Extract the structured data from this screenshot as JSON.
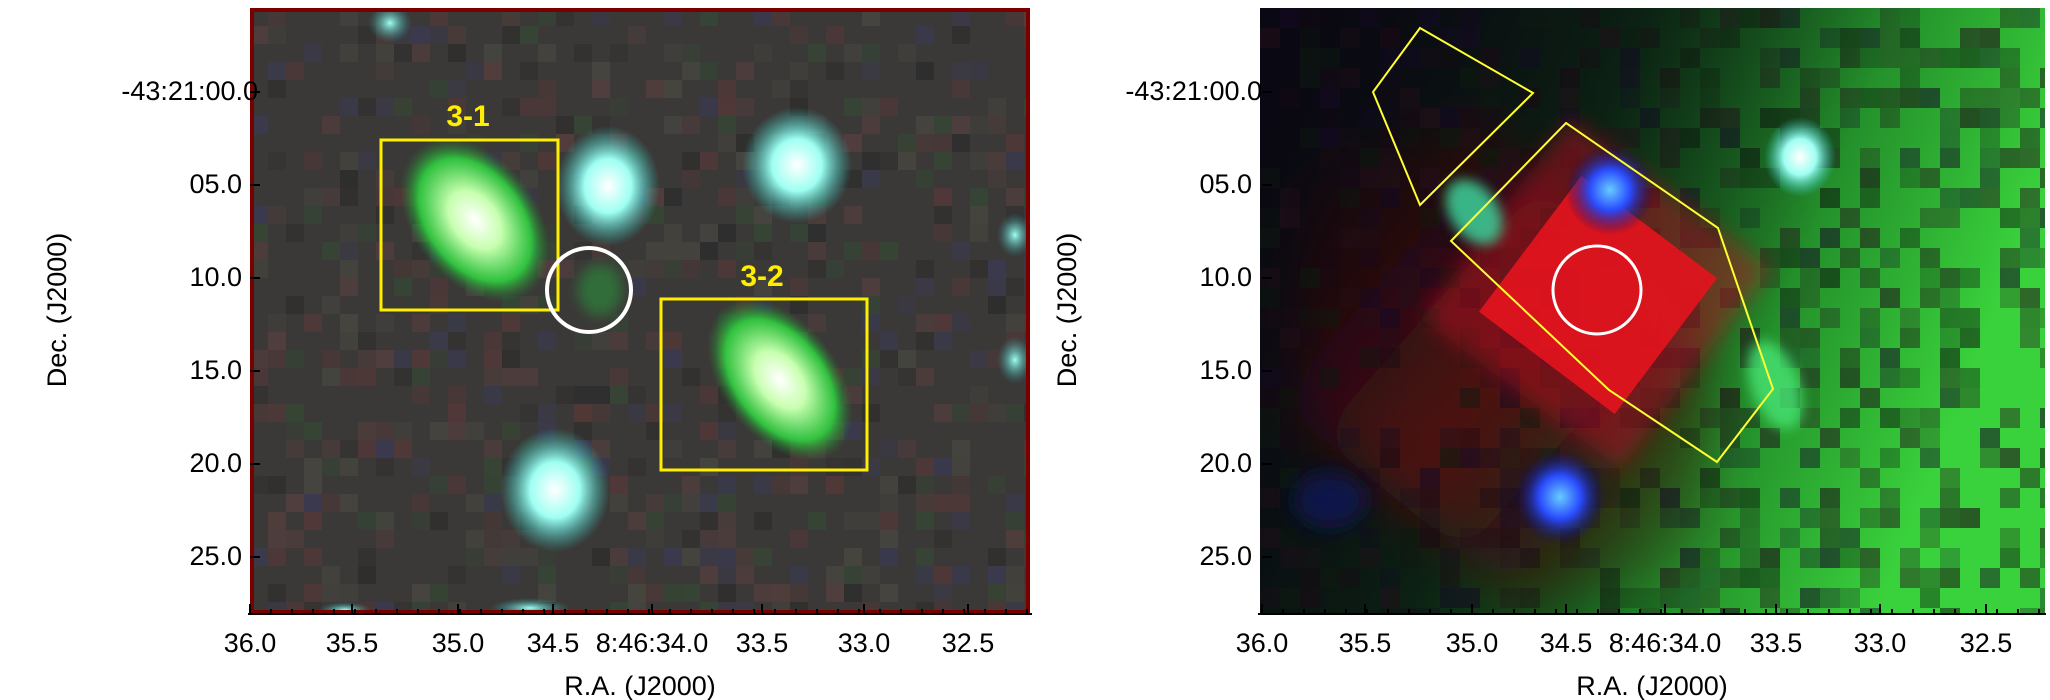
{
  "panels": [
    {
      "id": "left",
      "ylabel": "Dec. (J2000)",
      "xlabel": "R.A. (J2000)",
      "yticks": [
        "-43:21:00.0",
        "05.0",
        "10.0",
        "15.0",
        "20.0",
        "25.0"
      ],
      "xticks": [
        "36.0",
        "35.5",
        "35.0",
        "34.5",
        "8:46:34.0",
        "33.5",
        "33.0",
        "32.5"
      ],
      "labels": [
        "3-1",
        "3-2"
      ],
      "colors": {
        "background": "#3a3a38",
        "frame": "#7a0000",
        "box": "#ffee00",
        "circle": "#ffffff"
      }
    },
    {
      "id": "right",
      "ylabel": "Dec. (J2000)",
      "xlabel": "R.A. (J2000)",
      "yticks": [
        "-43:21:00.0",
        "05.0",
        "10.0",
        "15.0",
        "20.0",
        "25.0"
      ],
      "xticks": [
        "36.0",
        "35.5",
        "35.0",
        "34.5",
        "8:46:34.0",
        "33.5",
        "33.0",
        "32.5"
      ],
      "colors": {
        "background": "#0a0812",
        "polygon": "#ffff33",
        "circle": "#ffffff"
      }
    }
  ]
}
